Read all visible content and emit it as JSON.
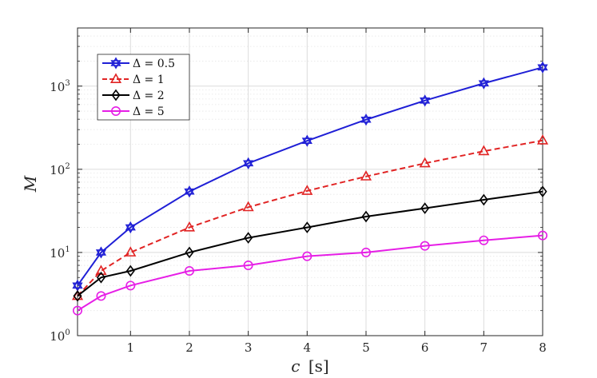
{
  "chart_data": {
    "type": "line",
    "xlabel_var": "c",
    "xlabel_unit": "[s]",
    "ylabel": "M",
    "xlim": [
      0.1,
      8
    ],
    "ylim": [
      1,
      5000
    ],
    "yscale": "log",
    "grid": true,
    "legend_position": "top-left",
    "xticks": [
      {
        "value": 1,
        "label": "1"
      },
      {
        "value": 2,
        "label": "2"
      },
      {
        "value": 3,
        "label": "3"
      },
      {
        "value": 4,
        "label": "4"
      },
      {
        "value": 5,
        "label": "5"
      },
      {
        "value": 6,
        "label": "6"
      },
      {
        "value": 7,
        "label": "7"
      },
      {
        "value": 8,
        "label": "8"
      }
    ],
    "yticks": [
      {
        "value": 1,
        "base": "10",
        "exp": "0"
      },
      {
        "value": 10,
        "base": "10",
        "exp": "1"
      },
      {
        "value": 100,
        "base": "10",
        "exp": "2"
      },
      {
        "value": 1000,
        "base": "10",
        "exp": "3"
      }
    ],
    "x": [
      0.1,
      0.5,
      1,
      2,
      3,
      4,
      5,
      6,
      7,
      8
    ],
    "series": [
      {
        "name": "Δ = 0.5",
        "color": "#1f1fd6",
        "dash": "solid",
        "marker": "hexagram",
        "values": [
          4,
          10,
          20,
          54,
          118,
          220,
          395,
          670,
          1080,
          1680
        ]
      },
      {
        "name": "Δ = 1",
        "color": "#e12424",
        "dash": "dashed",
        "marker": "triangle",
        "values": [
          3,
          6,
          10,
          20,
          35,
          55,
          82,
          118,
          165,
          222
        ]
      },
      {
        "name": "Δ = 2",
        "color": "#000000",
        "dash": "solid",
        "marker": "diamond",
        "values": [
          3,
          5,
          6,
          10,
          15,
          20,
          27,
          34,
          43,
          54
        ]
      },
      {
        "name": "Δ = 5",
        "color": "#e61ee6",
        "dash": "solid",
        "marker": "circle",
        "values": [
          2,
          3,
          4,
          6,
          7,
          9,
          10,
          12,
          14,
          16
        ]
      }
    ]
  }
}
